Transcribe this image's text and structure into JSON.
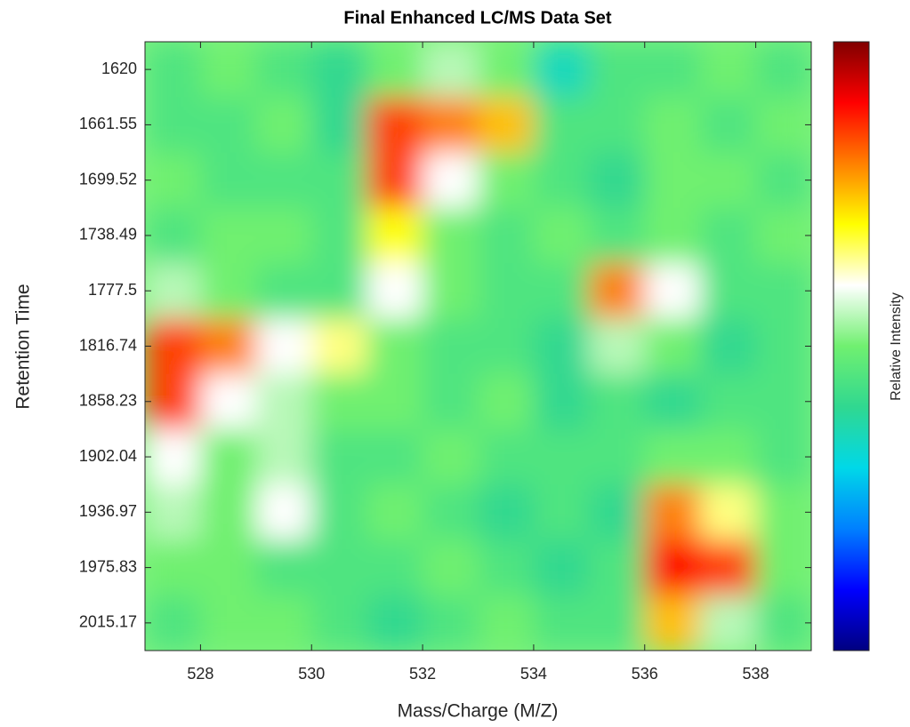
{
  "chart_data": {
    "type": "heatmap",
    "title": "Final Enhanced LC/MS Data Set",
    "x_label": "Mass/Charge (M/Z)",
    "y_label": "Retention Time",
    "colorbar_label": "Relative Intensity",
    "x": [
      527.5,
      528.5,
      529.5,
      530.5,
      531.5,
      532.5,
      533.5,
      534.5,
      535.5,
      536.5,
      537.5,
      538.5
    ],
    "y": [
      1620,
      1661.55,
      1699.52,
      1738.49,
      1777.5,
      1816.74,
      1858.23,
      1902.04,
      1936.97,
      1975.83,
      2015.17
    ],
    "z": [
      [
        0.45,
        0.5,
        0.45,
        0.4,
        0.5,
        0.55,
        0.5,
        0.35,
        0.45,
        0.45,
        0.5,
        0.45
      ],
      [
        0.45,
        0.45,
        0.5,
        0.4,
        0.85,
        0.8,
        0.75,
        0.45,
        0.45,
        0.5,
        0.45,
        0.5
      ],
      [
        0.5,
        0.45,
        0.45,
        0.45,
        0.85,
        0.6,
        0.5,
        0.45,
        0.4,
        0.5,
        0.5,
        0.45
      ],
      [
        0.45,
        0.5,
        0.5,
        0.45,
        0.7,
        0.5,
        0.45,
        0.5,
        0.45,
        0.5,
        0.45,
        0.5
      ],
      [
        0.55,
        0.5,
        0.45,
        0.45,
        0.6,
        0.5,
        0.45,
        0.45,
        0.8,
        0.6,
        0.45,
        0.45
      ],
      [
        0.85,
        0.8,
        0.6,
        0.65,
        0.5,
        0.45,
        0.45,
        0.4,
        0.55,
        0.5,
        0.4,
        0.45
      ],
      [
        0.85,
        0.6,
        0.55,
        0.5,
        0.5,
        0.45,
        0.5,
        0.4,
        0.45,
        0.4,
        0.45,
        0.45
      ],
      [
        0.6,
        0.5,
        0.55,
        0.45,
        0.45,
        0.5,
        0.45,
        0.45,
        0.45,
        0.5,
        0.5,
        0.45
      ],
      [
        0.55,
        0.5,
        0.6,
        0.45,
        0.5,
        0.45,
        0.4,
        0.45,
        0.4,
        0.8,
        0.65,
        0.5
      ],
      [
        0.5,
        0.5,
        0.45,
        0.45,
        0.45,
        0.5,
        0.45,
        0.4,
        0.45,
        0.9,
        0.85,
        0.5
      ],
      [
        0.45,
        0.5,
        0.5,
        0.45,
        0.4,
        0.45,
        0.5,
        0.45,
        0.45,
        0.75,
        0.55,
        0.45
      ]
    ],
    "zlim": [
      0,
      1
    ],
    "colormap": [
      "#000080",
      "#0000ff",
      "#0080ff",
      "#00d8e8",
      "#30d890",
      "#70f070",
      "#ffffff",
      "#ffff00",
      "#ff8000",
      "#ff0000",
      "#800000"
    ],
    "xlim": [
      527,
      539
    ],
    "xticks": [
      528,
      530,
      532,
      534,
      536,
      538
    ],
    "ylim": [
      1600,
      2035
    ],
    "yticks": [
      1620,
      1661.55,
      1699.52,
      1738.49,
      1777.5,
      1816.74,
      1858.23,
      1902.04,
      1936.97,
      1975.83,
      2015.17
    ],
    "y_reversed": true
  }
}
